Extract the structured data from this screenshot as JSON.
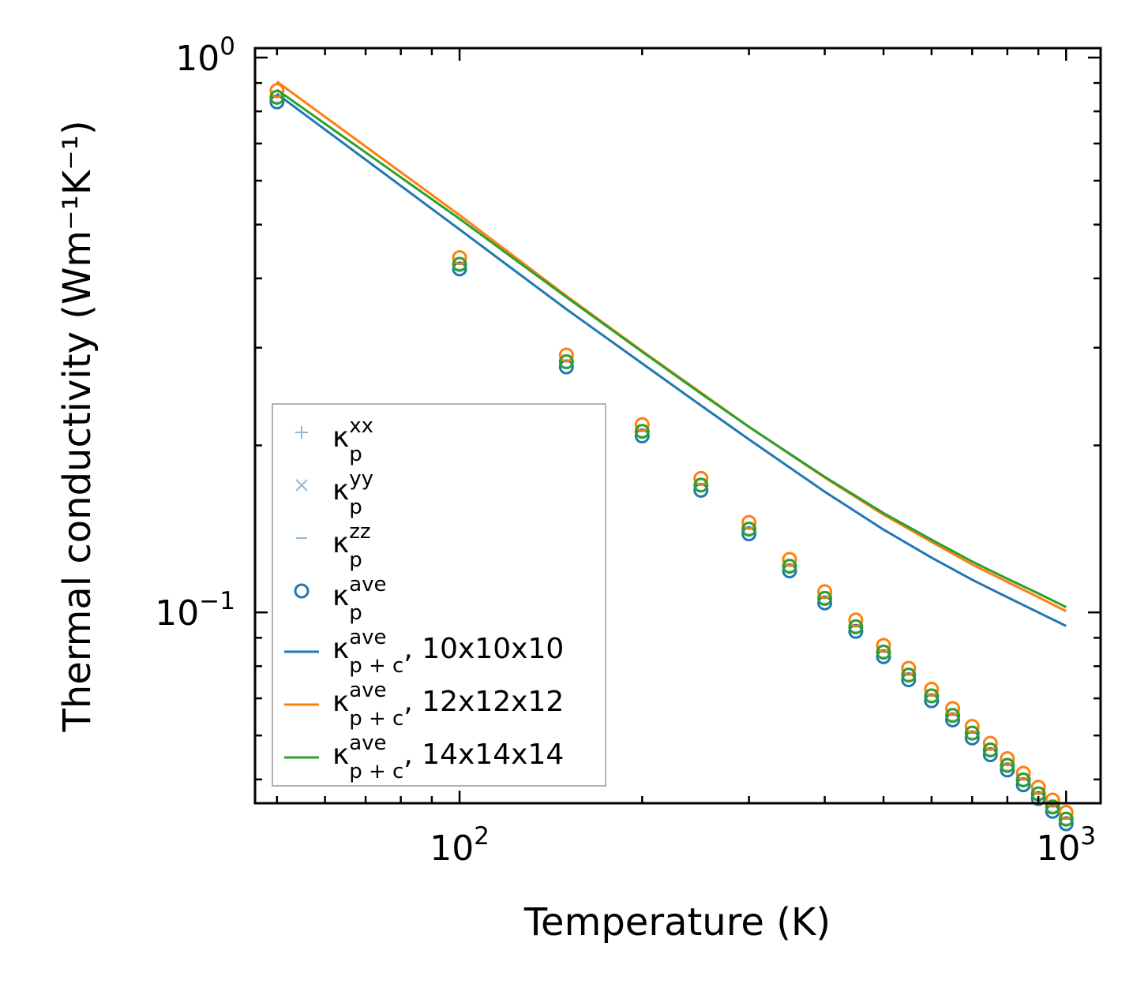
{
  "chart_data": {
    "type": "scatter",
    "title": "",
    "xlabel": "Temperature (K)",
    "ylabel": "Thermal conductivity (Wm⁻¹K⁻¹)",
    "xscale": "log",
    "yscale": "log",
    "xlim": [
      46,
      1140
    ],
    "ylim": [
      0.0453,
      1.04
    ],
    "x_ticks": [
      {
        "value": 100,
        "base": "10",
        "exp": "2"
      },
      {
        "value": 1000,
        "base": "10",
        "exp": "3"
      }
    ],
    "y_ticks": [
      {
        "value": 1.0,
        "base": "10",
        "exp": "0"
      },
      {
        "value": 0.1,
        "base": "10",
        "exp": "−1"
      }
    ],
    "temperatures": [
      50,
      100,
      150,
      200,
      250,
      300,
      350,
      400,
      450,
      500,
      550,
      600,
      650,
      700,
      750,
      800,
      850,
      900,
      950,
      1000
    ],
    "point_series": [
      {
        "name": "10x10x10",
        "color": "#1f77b4",
        "values": [
          0.832,
          0.416,
          0.277,
          0.208,
          0.166,
          0.1386,
          0.1188,
          0.104,
          0.0924,
          0.0832,
          0.0756,
          0.0693,
          0.064,
          0.0594,
          0.0554,
          0.052,
          0.0489,
          0.0462,
          0.0438,
          0.0416
        ]
      },
      {
        "name": "12x12x12",
        "color": "#ff7f0e",
        "values": [
          0.872,
          0.436,
          0.291,
          0.218,
          0.1744,
          0.1453,
          0.1246,
          0.109,
          0.0969,
          0.0872,
          0.0793,
          0.0727,
          0.0671,
          0.0623,
          0.0581,
          0.0545,
          0.0513,
          0.0484,
          0.0459,
          0.0436
        ]
      },
      {
        "name": "14x14x14",
        "color": "#2ca02c",
        "values": [
          0.848,
          0.424,
          0.283,
          0.212,
          0.1696,
          0.1413,
          0.1211,
          0.106,
          0.0942,
          0.0848,
          0.0771,
          0.0707,
          0.0652,
          0.0606,
          0.0565,
          0.053,
          0.0499,
          0.0471,
          0.0446,
          0.0424
        ]
      }
    ],
    "line_series": [
      {
        "name": "10x10x10",
        "color": "#1f77b4",
        "x": [
          50,
          100,
          150,
          200,
          250,
          300,
          400,
          500,
          600,
          700,
          800,
          900,
          1000
        ],
        "values": [
          0.86,
          0.49,
          0.352,
          0.281,
          0.236,
          0.205,
          0.165,
          0.141,
          0.1255,
          0.1145,
          0.1065,
          0.1,
          0.0945
        ]
      },
      {
        "name": "12x12x12",
        "color": "#ff7f0e",
        "x": [
          50,
          100,
          150,
          200,
          250,
          300,
          400,
          500,
          600,
          700,
          800,
          900,
          1000
        ],
        "values": [
          0.905,
          0.52,
          0.372,
          0.296,
          0.249,
          0.216,
          0.175,
          0.15,
          0.134,
          0.122,
          0.1135,
          0.1065,
          0.1005
        ]
      },
      {
        "name": "14x14x14",
        "color": "#2ca02c",
        "x": [
          50,
          100,
          150,
          200,
          250,
          300,
          400,
          500,
          600,
          700,
          800,
          900,
          1000
        ],
        "values": [
          0.875,
          0.512,
          0.37,
          0.295,
          0.248,
          0.216,
          0.1755,
          0.151,
          0.1352,
          0.1235,
          0.115,
          0.1082,
          0.1022
        ]
      }
    ],
    "legend": {
      "placement": "lower-left",
      "entries": [
        {
          "symbol": "plus",
          "color": "#8fb8d6",
          "main": "κ",
          "sub": "p",
          "sup": "xx",
          "suffix": ""
        },
        {
          "symbol": "cross",
          "color": "#8fb8d6",
          "main": "κ",
          "sub": "p",
          "sup": "yy",
          "suffix": ""
        },
        {
          "symbol": "dash",
          "color": "#8fb8d6",
          "main": "κ",
          "sub": "p",
          "sup": "zz",
          "suffix": ""
        },
        {
          "symbol": "circle",
          "color": "#1f77b4",
          "main": "κ",
          "sub": "p",
          "sup": "ave",
          "suffix": ""
        },
        {
          "symbol": "line",
          "color": "#1f77b4",
          "main": "κ",
          "sub": "p + c",
          "sup": "ave",
          "suffix": ", 10x10x10"
        },
        {
          "symbol": "line",
          "color": "#ff7f0e",
          "main": "κ",
          "sub": "p + c",
          "sup": "ave",
          "suffix": ", 12x12x12"
        },
        {
          "symbol": "line",
          "color": "#2ca02c",
          "main": "κ",
          "sub": "p + c",
          "sup": "ave",
          "suffix": ", 14x14x14"
        }
      ]
    }
  }
}
